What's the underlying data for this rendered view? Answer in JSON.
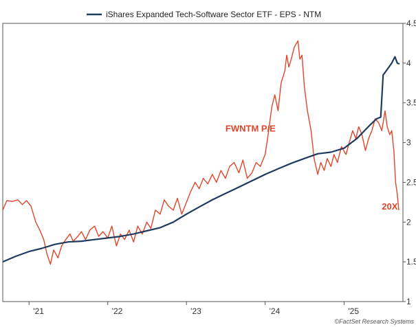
{
  "chart_data": {
    "type": "line",
    "legend": "iShares Expanded Tech-Software Sector ETF - EPS - NTM",
    "legend_position": "top-center",
    "x_tick_labels": [
      "'21",
      "'22",
      "'23",
      "'24",
      "'25"
    ],
    "x_tick_years": [
      2021,
      2022,
      2023,
      2024,
      2025
    ],
    "xlim": [
      "2020-09-01",
      "2025-10-01"
    ],
    "right_axis": {
      "ylim": [
        1,
        4.5
      ],
      "ticks": [
        "1",
        "1.5",
        "2",
        "2.5",
        "3",
        "3.5",
        "4",
        "4.5"
      ],
      "tick_values": [
        1,
        1.5,
        2,
        2.5,
        3,
        3.5,
        4,
        4.5
      ]
    },
    "grid": false,
    "series": [
      {
        "name": "iShares Expanded Tech-Software Sector ETF - EPS - NTM",
        "color": "#1f3a5f",
        "axis": "right",
        "points": [
          [
            "2020-09-01",
            1.5
          ],
          [
            "2020-11-01",
            1.57
          ],
          [
            "2021-01-01",
            1.63
          ],
          [
            "2021-03-01",
            1.67
          ],
          [
            "2021-05-01",
            1.72
          ],
          [
            "2021-07-01",
            1.75
          ],
          [
            "2021-09-01",
            1.76
          ],
          [
            "2021-11-01",
            1.78
          ],
          [
            "2022-01-01",
            1.8
          ],
          [
            "2022-03-01",
            1.82
          ],
          [
            "2022-05-01",
            1.85
          ],
          [
            "2022-07-01",
            1.89
          ],
          [
            "2022-09-01",
            1.93
          ],
          [
            "2022-11-01",
            2.0
          ],
          [
            "2023-01-01",
            2.1
          ],
          [
            "2023-03-01",
            2.19
          ],
          [
            "2023-05-01",
            2.28
          ],
          [
            "2023-07-01",
            2.36
          ],
          [
            "2023-09-01",
            2.44
          ],
          [
            "2023-11-01",
            2.52
          ],
          [
            "2024-01-01",
            2.6
          ],
          [
            "2024-03-01",
            2.67
          ],
          [
            "2024-05-01",
            2.74
          ],
          [
            "2024-07-01",
            2.8
          ],
          [
            "2024-09-01",
            2.86
          ],
          [
            "2024-11-01",
            2.88
          ],
          [
            "2025-01-01",
            2.93
          ],
          [
            "2025-03-01",
            3.05
          ],
          [
            "2025-05-01",
            3.22
          ],
          [
            "2025-06-01",
            3.3
          ],
          [
            "2025-06-20",
            3.32
          ],
          [
            "2025-07-01",
            3.85
          ],
          [
            "2025-07-20",
            3.92
          ],
          [
            "2025-08-10",
            4.0
          ],
          [
            "2025-08-25",
            4.08
          ],
          [
            "2025-09-05",
            4.0
          ],
          [
            "2025-09-15",
            3.99
          ]
        ]
      },
      {
        "name": "FWNTM P/E",
        "color": "#e0452a",
        "axis": "left",
        "points": [
          [
            "2020-09-01",
            2.15
          ],
          [
            "2020-09-20",
            2.27
          ],
          [
            "2020-10-15",
            2.26
          ],
          [
            "2020-11-10",
            2.28
          ],
          [
            "2020-12-01",
            2.22
          ],
          [
            "2020-12-20",
            2.27
          ],
          [
            "2021-01-10",
            2.2
          ],
          [
            "2021-02-01",
            2.0
          ],
          [
            "2021-02-20",
            1.9
          ],
          [
            "2021-03-10",
            1.78
          ],
          [
            "2021-03-25",
            1.6
          ],
          [
            "2021-04-10",
            1.47
          ],
          [
            "2021-04-25",
            1.65
          ],
          [
            "2021-05-15",
            1.55
          ],
          [
            "2021-06-01",
            1.7
          ],
          [
            "2021-06-20",
            1.78
          ],
          [
            "2021-07-10",
            1.85
          ],
          [
            "2021-07-25",
            1.76
          ],
          [
            "2021-08-15",
            1.82
          ],
          [
            "2021-09-01",
            1.88
          ],
          [
            "2021-09-20",
            1.78
          ],
          [
            "2021-10-10",
            1.9
          ],
          [
            "2021-11-01",
            1.95
          ],
          [
            "2021-11-20",
            1.82
          ],
          [
            "2021-12-10",
            1.88
          ],
          [
            "2022-01-01",
            1.8
          ],
          [
            "2022-01-20",
            1.95
          ],
          [
            "2022-02-10",
            1.7
          ],
          [
            "2022-03-01",
            1.85
          ],
          [
            "2022-03-20",
            1.78
          ],
          [
            "2022-04-10",
            1.9
          ],
          [
            "2022-05-01",
            1.75
          ],
          [
            "2022-05-20",
            1.95
          ],
          [
            "2022-06-10",
            1.85
          ],
          [
            "2022-07-01",
            2.0
          ],
          [
            "2022-07-20",
            1.92
          ],
          [
            "2022-08-10",
            2.15
          ],
          [
            "2022-09-01",
            2.1
          ],
          [
            "2022-09-20",
            2.28
          ],
          [
            "2022-10-10",
            2.2
          ],
          [
            "2022-11-01",
            2.15
          ],
          [
            "2022-11-20",
            2.3
          ],
          [
            "2022-12-10",
            2.1
          ],
          [
            "2023-01-01",
            2.25
          ],
          [
            "2023-01-20",
            2.38
          ],
          [
            "2023-02-10",
            2.5
          ],
          [
            "2023-03-01",
            2.42
          ],
          [
            "2023-03-20",
            2.55
          ],
          [
            "2023-04-10",
            2.48
          ],
          [
            "2023-05-01",
            2.6
          ],
          [
            "2023-05-20",
            2.5
          ],
          [
            "2023-06-10",
            2.65
          ],
          [
            "2023-07-01",
            2.55
          ],
          [
            "2023-07-20",
            2.7
          ],
          [
            "2023-08-10",
            2.75
          ],
          [
            "2023-09-01",
            2.62
          ],
          [
            "2023-09-20",
            2.78
          ],
          [
            "2023-10-10",
            2.55
          ],
          [
            "2023-11-01",
            2.62
          ],
          [
            "2023-11-20",
            2.75
          ],
          [
            "2023-12-10",
            2.7
          ],
          [
            "2024-01-01",
            2.85
          ],
          [
            "2024-01-15",
            3.1
          ],
          [
            "2024-02-01",
            3.45
          ],
          [
            "2024-02-15",
            3.6
          ],
          [
            "2024-03-01",
            3.4
          ],
          [
            "2024-03-15",
            3.75
          ],
          [
            "2024-04-01",
            3.9
          ],
          [
            "2024-04-10",
            4.1
          ],
          [
            "2024-04-20",
            3.95
          ],
          [
            "2024-05-01",
            4.05
          ],
          [
            "2024-05-15",
            4.2
          ],
          [
            "2024-06-01",
            4.28
          ],
          [
            "2024-06-10",
            4.05
          ],
          [
            "2024-06-20",
            4.1
          ],
          [
            "2024-07-01",
            3.7
          ],
          [
            "2024-07-15",
            3.4
          ],
          [
            "2024-08-01",
            3.15
          ],
          [
            "2024-08-15",
            2.8
          ],
          [
            "2024-09-01",
            2.6
          ],
          [
            "2024-09-15",
            2.75
          ],
          [
            "2024-10-01",
            2.65
          ],
          [
            "2024-10-15",
            2.8
          ],
          [
            "2024-11-01",
            2.7
          ],
          [
            "2024-11-15",
            2.85
          ],
          [
            "2024-12-01",
            2.75
          ],
          [
            "2024-12-20",
            2.95
          ],
          [
            "2025-01-10",
            2.85
          ],
          [
            "2025-01-25",
            3.0
          ],
          [
            "2025-02-10",
            3.15
          ],
          [
            "2025-02-25",
            3.05
          ],
          [
            "2025-03-10",
            3.2
          ],
          [
            "2025-03-25",
            3.1
          ],
          [
            "2025-04-10",
            2.9
          ],
          [
            "2025-04-25",
            3.05
          ],
          [
            "2025-05-10",
            3.15
          ],
          [
            "2025-05-25",
            3.3
          ],
          [
            "2025-06-10",
            3.25
          ],
          [
            "2025-06-25",
            3.15
          ],
          [
            "2025-07-10",
            3.4
          ],
          [
            "2025-07-20",
            3.2
          ],
          [
            "2025-08-01",
            3.1
          ],
          [
            "2025-08-10",
            3.15
          ],
          [
            "2025-08-20",
            2.9
          ],
          [
            "2025-08-28",
            2.5
          ],
          [
            "2025-09-05",
            2.35
          ],
          [
            "2025-09-12",
            2.15
          ]
        ]
      }
    ],
    "annotations": [
      {
        "text": "FWNTM P/E",
        "color": "#e0452a",
        "anchor_date": "2023-07-01",
        "anchor_value": 3.14
      },
      {
        "text": "20X",
        "color": "#e0452a",
        "anchor_date": "2025-06-25",
        "anchor_value": 2.16
      }
    ],
    "source": "©FactSet Research Systems"
  }
}
